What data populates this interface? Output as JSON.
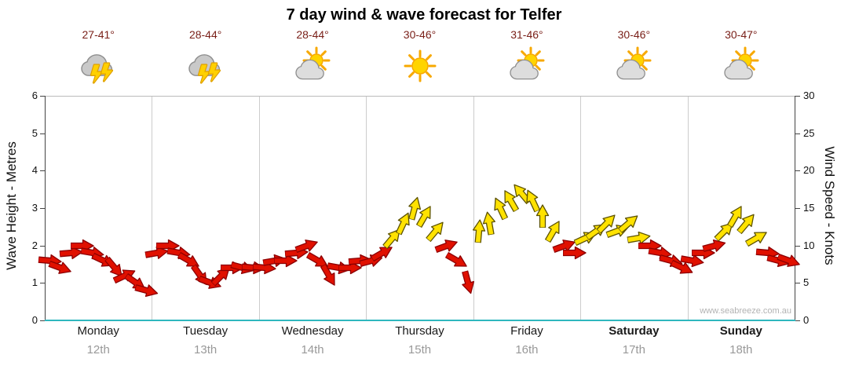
{
  "title": "7 day wind & wave forecast for Telfer",
  "watermark": "www.seabreeze.com.au",
  "colors": {
    "temp_label": "#7a2019",
    "arrow_red": "#e01000",
    "arrow_red_outline": "#8c0000",
    "arrow_yellow": "#ffe200",
    "arrow_yellow_outline": "#5c5200",
    "bottom_axis": "#2fb7be",
    "grid": "#cccccc",
    "axis_line": "#444444",
    "top_line": "#bbbbbb",
    "date_label": "#999999"
  },
  "chart_data": {
    "type": "scatter",
    "subtype": "wind-arrow-timeseries",
    "title": "7 day wind & wave forecast for Telfer",
    "days": [
      {
        "name": "Monday",
        "date": "12th",
        "temp": "27-41°",
        "icon": "storm",
        "bold": false
      },
      {
        "name": "Tuesday",
        "date": "13th",
        "temp": "28-44°",
        "icon": "storm",
        "bold": false
      },
      {
        "name": "Wednesday",
        "date": "14th",
        "temp": "28-44°",
        "icon": "sun-cloud",
        "bold": false
      },
      {
        "name": "Thursday",
        "date": "15th",
        "temp": "30-46°",
        "icon": "sun",
        "bold": false
      },
      {
        "name": "Friday",
        "date": "16th",
        "temp": "31-46°",
        "icon": "sun-cloud",
        "bold": false
      },
      {
        "name": "Saturday",
        "date": "17th",
        "temp": "30-46°",
        "icon": "sun-cloud",
        "bold": true
      },
      {
        "name": "Sunday",
        "date": "18th",
        "temp": "30-47°",
        "icon": "sun-cloud",
        "bold": true
      }
    ],
    "axes": {
      "left_label": "Wave Height - Metres",
      "right_label": "Wind Speed - Knots",
      "left_ticks": [
        0,
        1,
        2,
        3,
        4,
        5,
        6
      ],
      "right_ticks": [
        0,
        5,
        10,
        15,
        20,
        25,
        30
      ],
      "left_range": [
        0,
        6
      ],
      "right_range": [
        0,
        30
      ],
      "left_unit": "m",
      "right_unit": "knots"
    },
    "legend_note": "red arrows = lighter winds, yellow arrows = stronger winds; arrow rotation shows wind direction",
    "points_format": [
      "wind_speed_knots",
      "direction_deg_css_rotation (0 = pointing right, negative = tilted up)",
      "color (r=red, y=yellow)"
    ],
    "points_per_day": 10,
    "points": [
      [
        8,
        5,
        "r"
      ],
      [
        7,
        20,
        "r"
      ],
      [
        9,
        -5,
        "r"
      ],
      [
        10,
        0,
        "r"
      ],
      [
        9,
        10,
        "r"
      ],
      [
        8,
        25,
        "r"
      ],
      [
        7,
        50,
        "r"
      ],
      [
        6,
        -25,
        "r"
      ],
      [
        5,
        35,
        "r"
      ],
      [
        4,
        15,
        "r"
      ],
      [
        9,
        -10,
        "r"
      ],
      [
        10,
        0,
        "r"
      ],
      [
        9,
        10,
        "r"
      ],
      [
        8,
        30,
        "r"
      ],
      [
        6,
        55,
        "r"
      ],
      [
        5,
        20,
        "r"
      ],
      [
        6,
        -45,
        "r"
      ],
      [
        7,
        0,
        "r"
      ],
      [
        7,
        15,
        "r"
      ],
      [
        7,
        5,
        "r"
      ],
      [
        7,
        5,
        "r"
      ],
      [
        8,
        -10,
        "r"
      ],
      [
        8,
        0,
        "r"
      ],
      [
        9,
        -5,
        "r"
      ],
      [
        10,
        -20,
        "r"
      ],
      [
        8,
        30,
        "r"
      ],
      [
        6,
        60,
        "r"
      ],
      [
        7,
        10,
        "r"
      ],
      [
        7,
        0,
        "r"
      ],
      [
        8,
        -5,
        "r"
      ],
      [
        8,
        -15,
        "r"
      ],
      [
        9,
        -30,
        "r"
      ],
      [
        11,
        -50,
        "y"
      ],
      [
        13,
        -65,
        "y"
      ],
      [
        15,
        -75,
        "y"
      ],
      [
        14,
        -60,
        "y"
      ],
      [
        12,
        -50,
        "y"
      ],
      [
        10,
        -20,
        "r"
      ],
      [
        8,
        30,
        "r"
      ],
      [
        5,
        75,
        "r"
      ],
      [
        12,
        -85,
        "y"
      ],
      [
        13,
        -100,
        "y"
      ],
      [
        15,
        -115,
        "y"
      ],
      [
        16,
        -120,
        "y"
      ],
      [
        17,
        -130,
        "y"
      ],
      [
        16,
        -115,
        "y"
      ],
      [
        14,
        -90,
        "y"
      ],
      [
        12,
        -60,
        "y"
      ],
      [
        10,
        -20,
        "r"
      ],
      [
        9,
        0,
        "r"
      ],
      [
        11,
        -25,
        "y"
      ],
      [
        12,
        -35,
        "y"
      ],
      [
        13,
        -45,
        "y"
      ],
      [
        12,
        -20,
        "y"
      ],
      [
        13,
        -40,
        "y"
      ],
      [
        11,
        -10,
        "y"
      ],
      [
        10,
        0,
        "r"
      ],
      [
        9,
        10,
        "r"
      ],
      [
        8,
        15,
        "r"
      ],
      [
        7,
        25,
        "r"
      ],
      [
        8,
        10,
        "r"
      ],
      [
        9,
        0,
        "r"
      ],
      [
        10,
        -15,
        "r"
      ],
      [
        12,
        -45,
        "y"
      ],
      [
        14,
        -60,
        "y"
      ],
      [
        13,
        -50,
        "y"
      ],
      [
        11,
        -30,
        "y"
      ],
      [
        9,
        5,
        "r"
      ],
      [
        8,
        15,
        "r"
      ],
      [
        8,
        20,
        "r"
      ]
    ]
  }
}
